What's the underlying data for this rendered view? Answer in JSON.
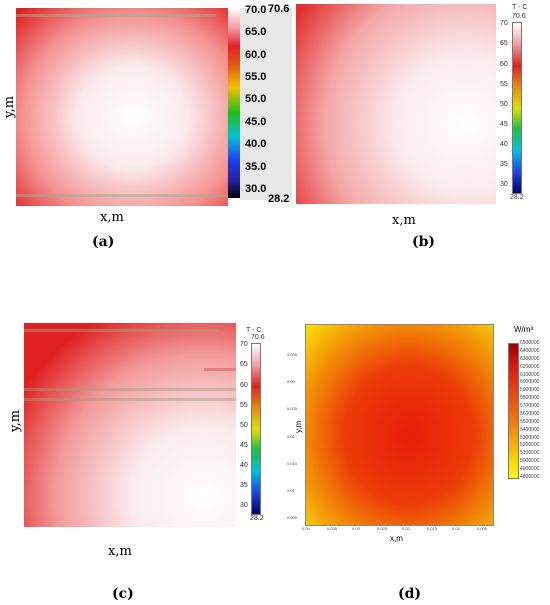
{
  "chart_data": [
    {
      "type": "heatmap",
      "panel": "a",
      "caption": "(a)",
      "xlabel": "x,m",
      "ylabel": "y,m",
      "colorbar": {
        "min": 28.2,
        "max": 70.6,
        "ticks": [
          "70.0",
          "65.0",
          "60.0",
          "55.0",
          "50.0",
          "45.0",
          "40.0",
          "35.0",
          "30.0"
        ],
        "min_label": "28.2",
        "max_label": "70.6"
      },
      "field": {
        "peak": 70.6,
        "peak_location": "center",
        "edge_values": "≈60–65",
        "corner_min": 28.2
      }
    },
    {
      "type": "heatmap",
      "panel": "b",
      "caption": "(b)",
      "xlabel": "x,m",
      "ylabel": "",
      "colorbar": {
        "title": "T - C",
        "min": 28.2,
        "max": 70.6,
        "ticks": [
          "70",
          "65",
          "60",
          "55",
          "50",
          "45",
          "40",
          "35",
          "30"
        ],
        "min_label": "28.2",
        "max_label": "70.6"
      },
      "field": {
        "peak": 70.6,
        "peak_location": "right-center",
        "corner_min": 28.2
      }
    },
    {
      "type": "heatmap",
      "panel": "c",
      "caption": "(c)",
      "xlabel": "x,m",
      "ylabel": "y,m",
      "colorbar": {
        "title": "T - C",
        "min": 28.2,
        "max": 70.6,
        "ticks": [
          "70",
          "65",
          "60",
          "55",
          "50",
          "45",
          "40",
          "35",
          "30"
        ],
        "min_label": "28.2",
        "max_label": "70.6"
      },
      "field": {
        "peak": 70.6,
        "peak_location": "lower-right",
        "corner_min": 28.2
      }
    },
    {
      "type": "heatmap",
      "panel": "d",
      "caption": "(d)",
      "xlabel": "x,m",
      "ylabel": "y,m",
      "x_ticks": [
        "0.04",
        "0.035",
        "0.03",
        "0.025",
        "0.02",
        "0.015",
        "0.01",
        "0.005"
      ],
      "y_ticks": [
        "0.005",
        "0.01",
        "0.015",
        "0.02",
        "0.025",
        "0.03",
        "0.035"
      ],
      "colorbar": {
        "title": "W/m³",
        "min": 4800000,
        "max": 6500000,
        "ticks": [
          "6500000",
          "6400000",
          "6300000",
          "6200000",
          "6100000",
          "6000000",
          "5900000",
          "5800000",
          "5700000",
          "5600000",
          "5500000",
          "5400000",
          "5300000",
          "5200000",
          "5100000",
          "5000000",
          "4900000",
          "4800000"
        ]
      },
      "field": {
        "peak": 6500000,
        "peak_location": "center",
        "corner_min": 4800000
      }
    }
  ]
}
